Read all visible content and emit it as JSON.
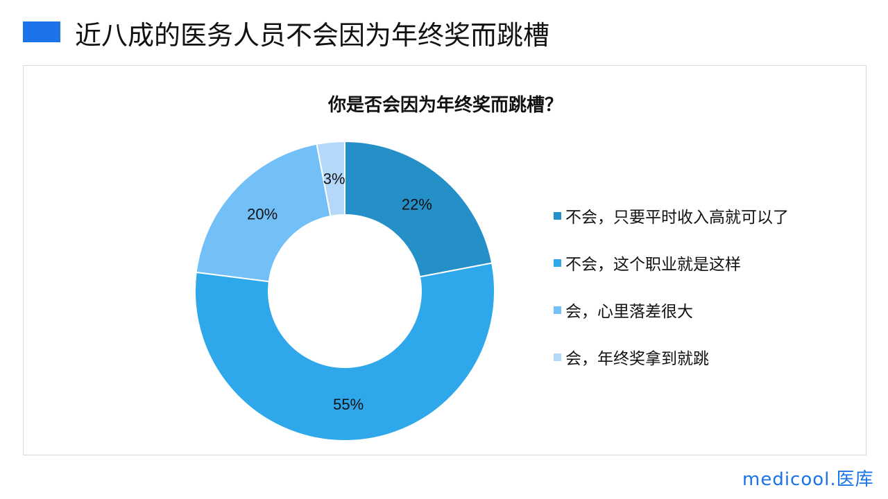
{
  "header": {
    "title": "近八成的医务人员不会因为年终奖而跳槽",
    "accent": "#1a73e8"
  },
  "chart_data": {
    "type": "pie",
    "donut": true,
    "title": "你是否会因为年终奖而跳槽？",
    "categories": [
      "不会，只要平时收入高就可以了",
      "不会，这个职业就是这样",
      "会，心里落差很大",
      "会，年终奖拿到就跳"
    ],
    "values": [
      22,
      55,
      20,
      3
    ],
    "labels": [
      "22%",
      "55%",
      "20%",
      "3%"
    ],
    "colors": [
      "#258FC8",
      "#2EA8EA",
      "#73C0F8",
      "#B4D8FA"
    ],
    "legend": "right"
  },
  "logo": "medicool.医库"
}
